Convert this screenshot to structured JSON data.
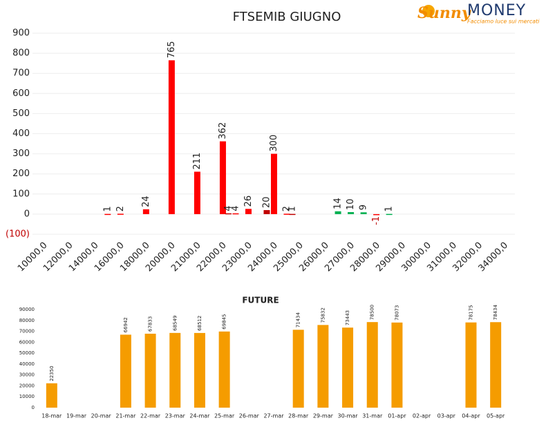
{
  "logo": {
    "brand": "Sunny",
    "brand2": "MONEY",
    "tagline": "Facciamo luce sui mercati"
  },
  "chart_data": [
    {
      "type": "bar",
      "title": "FTSEMIB GIUGNO",
      "categories": [
        "10000,0",
        null,
        "12000,0",
        null,
        "14000,0",
        null,
        "16000,0",
        null,
        "18000,0",
        null,
        "20000,0",
        null,
        "21000,0",
        null,
        "22000,0",
        null,
        "23000,0",
        null,
        "24000,0",
        null,
        "25000,0",
        null,
        "26000,0",
        null,
        "27000,0",
        null,
        "28000,0",
        null,
        "29000,0",
        null,
        "30000,0",
        null,
        "31000,0",
        null,
        "32000,0",
        null,
        "34000,0"
      ],
      "series": [
        {
          "color": "#ff0000",
          "values": [
            null,
            null,
            null,
            null,
            null,
            1,
            2,
            null,
            24,
            null,
            765,
            null,
            211,
            null,
            362,
            4,
            26,
            null,
            300,
            2,
            null,
            null,
            null,
            14,
            10,
            9,
            -1,
            1,
            null,
            null,
            null,
            null,
            null,
            null,
            null,
            null,
            null
          ],
          "colors": [
            null,
            null,
            null,
            null,
            null,
            "#ff0000",
            "#ff0000",
            null,
            "#ff0000",
            null,
            "#ff0000",
            null,
            "#ff0000",
            null,
            "#ff0000",
            "#ff0000",
            "#ff0000",
            null,
            "#ff0000",
            "#ff0000",
            null,
            null,
            null,
            "#00b050",
            "#00b050",
            "#00b050",
            "#ff0000",
            "#00b050",
            null,
            null,
            null,
            null,
            null,
            null,
            null,
            null,
            null
          ]
        },
        {
          "color": "#c00000",
          "values": [
            null,
            null,
            null,
            null,
            null,
            null,
            null,
            null,
            null,
            null,
            null,
            null,
            null,
            null,
            4,
            null,
            null,
            20,
            null,
            1,
            null,
            null,
            null,
            null,
            null,
            null,
            null,
            null,
            null,
            null,
            null,
            null,
            null,
            null,
            null,
            null,
            null
          ]
        }
      ],
      "ylim": [
        -100,
        900
      ],
      "yticks": [
        {
          "value": -100,
          "label": "(100)"
        },
        0,
        100,
        200,
        300,
        400,
        500,
        600,
        700,
        800,
        900
      ],
      "negative_color": "#c00000",
      "grid": true
    },
    {
      "type": "bar",
      "title": "FUTURE",
      "categories": [
        "18-mar",
        "19-mar",
        "20-mar",
        "21-mar",
        "22-mar",
        "23-mar",
        "24-mar",
        "25-mar",
        "26-mar",
        "27-mar",
        "28-mar",
        "29-mar",
        "30-mar",
        "31-mar",
        "01-apr",
        "02-apr",
        "03-apr",
        "04-apr",
        "05-apr"
      ],
      "series": [
        {
          "color": "#f59c00",
          "values": [
            22350,
            null,
            null,
            66942,
            67833,
            68549,
            68512,
            69845,
            null,
            null,
            71434,
            75832,
            73443,
            78500,
            78073,
            null,
            null,
            78175,
            78434
          ]
        }
      ],
      "ylim": [
        0,
        90000
      ],
      "yticks": [
        0,
        10000,
        20000,
        30000,
        40000,
        50000,
        60000,
        70000,
        80000,
        90000
      ],
      "grid": false
    }
  ]
}
